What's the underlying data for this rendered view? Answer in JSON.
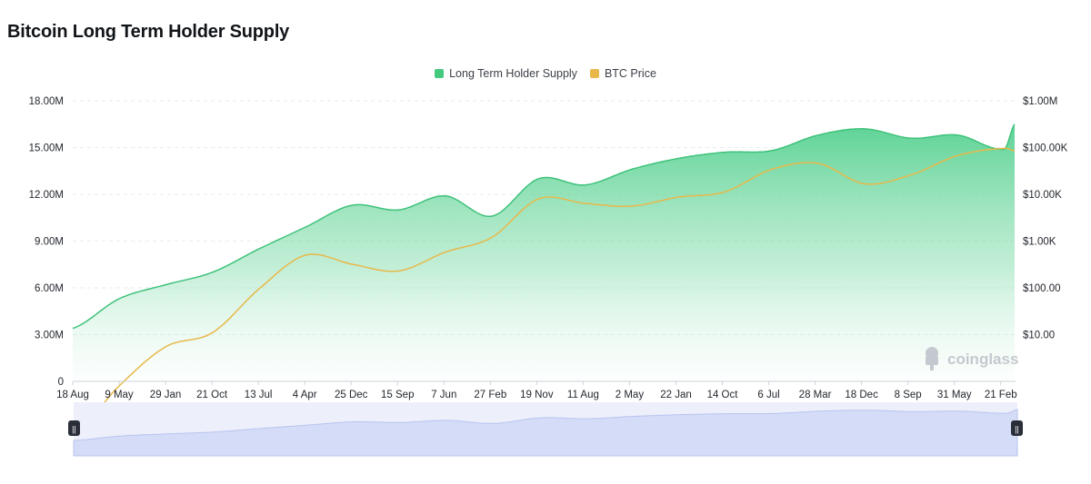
{
  "chart_data": {
    "type": "area",
    "title": "Bitcoin Long Term Holder Supply",
    "legend": [
      {
        "name": "Long Term Holder Supply",
        "color": "#45c97e"
      },
      {
        "name": "BTC Price",
        "color": "#e8b84a"
      }
    ],
    "legend_position": "top-center",
    "grid": true,
    "watermark": "coinglass",
    "x_tick_labels": [
      "18 Aug",
      "9 May",
      "29 Jan",
      "21 Oct",
      "13 Jul",
      "4 Apr",
      "25 Dec",
      "15 Sep",
      "7 Jun",
      "27 Feb",
      "19 Nov",
      "11 Aug",
      "2 May",
      "22 Jan",
      "14 Oct",
      "6 Jul",
      "28 Mar",
      "18 Dec",
      "8 Sep",
      "31 May",
      "21 Feb"
    ],
    "x_dates": [
      "2010-08-18",
      "2011-05-09",
      "2012-01-29",
      "2012-10-21",
      "2013-07-13",
      "2014-04-04",
      "2014-12-25",
      "2015-09-15",
      "2016-06-07",
      "2017-02-27",
      "2017-11-19",
      "2018-08-11",
      "2019-05-02",
      "2020-01-22",
      "2020-10-14",
      "2021-07-06",
      "2022-03-28",
      "2022-12-18",
      "2023-09-08",
      "2024-05-31",
      "2025-02-21",
      "2025-04-20"
    ],
    "y_left": {
      "ticks": [
        "0",
        "3.00M",
        "6.00M",
        "9.00M",
        "12.00M",
        "15.00M",
        "18.00M"
      ],
      "ylim": [
        0,
        18000000
      ]
    },
    "y_right": {
      "ticks": [
        "$10.00",
        "$100.00",
        "$1.00K",
        "$10.00K",
        "$100.00K",
        "$1.00M"
      ],
      "scale": "log",
      "ylim": [
        1,
        1000000
      ]
    },
    "series": [
      {
        "name": "Long Term Holder Supply",
        "axis": "left",
        "values": [
          3400000,
          5300000,
          6200000,
          7000000,
          8500000,
          9900000,
          11300000,
          11000000,
          11900000,
          10600000,
          13000000,
          12600000,
          13600000,
          14300000,
          14700000,
          14800000,
          15800000,
          16200000,
          15600000,
          15800000,
          14900000,
          16500000
        ]
      },
      {
        "name": "BTC Price",
        "axis": "right",
        "values": [
          0.07,
          0.8,
          5.5,
          11,
          95,
          500,
          320,
          230,
          580,
          1200,
          8000,
          6400,
          5600,
          8700,
          11300,
          34000,
          46000,
          16800,
          26000,
          67500,
          96000,
          85000
        ]
      }
    ]
  },
  "navigator": {
    "handle_left": "||",
    "handle_right": "||"
  }
}
